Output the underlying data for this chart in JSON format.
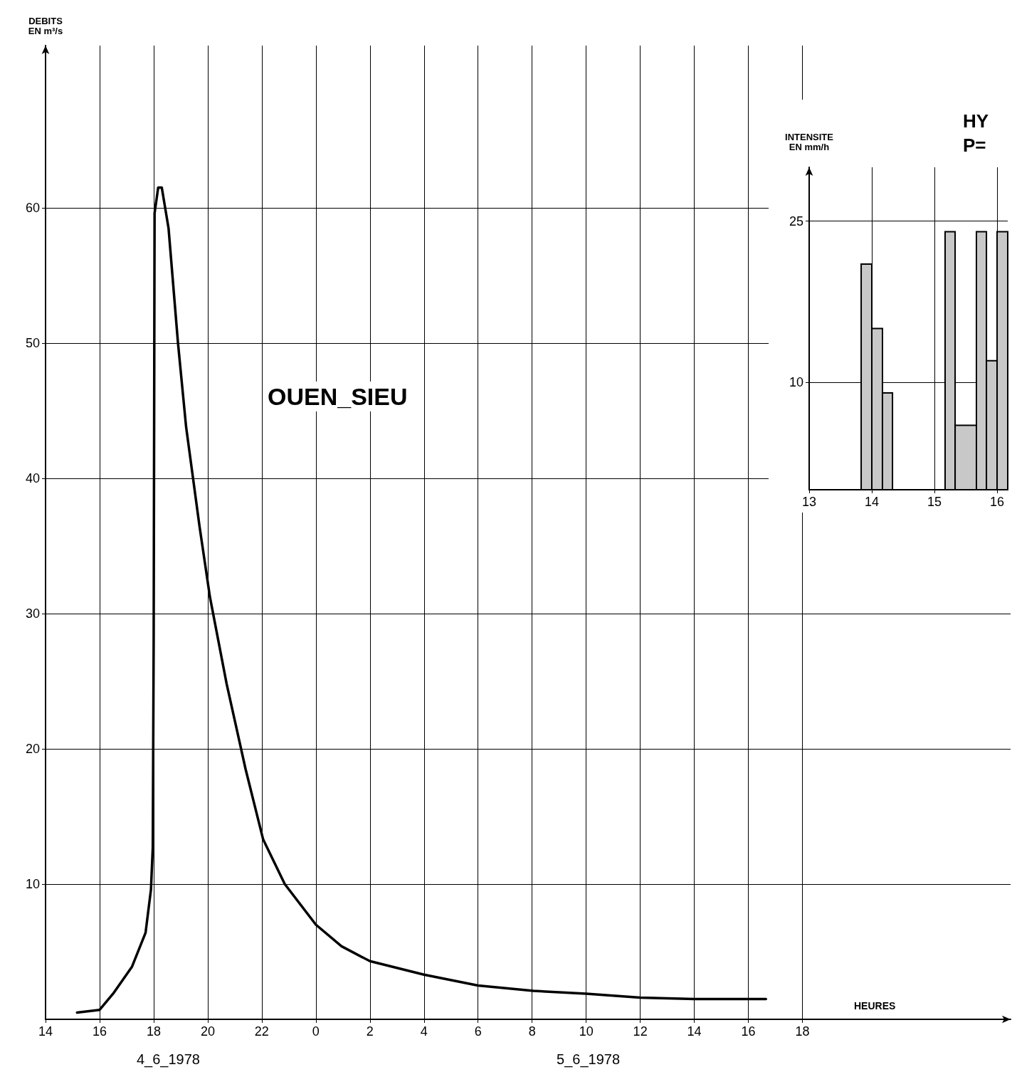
{
  "chart_data": [
    {
      "type": "line",
      "title": "OUEN_SIEU",
      "xlabel": "HEURES",
      "ylabel": "DEBITS\nEN m³/s",
      "annotations": [
        "4_6_1978",
        "5_6_1978"
      ],
      "series": [
        {
          "color": "#000000",
          "x": [
            "1978-06-04T15:10",
            "1978-06-04T16:00",
            "1978-06-04T16:30",
            "1978-06-04T17:12",
            "1978-06-04T17:42",
            "1978-06-04T17:54",
            "1978-06-04T17:58",
            "1978-06-04T18:00",
            "1978-06-04T18:02",
            "1978-06-04T18:10",
            "1978-06-04T18:18",
            "1978-06-04T18:33",
            "1978-06-04T18:54",
            "1978-06-04T19:12",
            "1978-06-04T19:42",
            "1978-06-04T20:05",
            "1978-06-04T20:42",
            "1978-06-04T21:24",
            "1978-06-04T22:03",
            "1978-06-04T22:51",
            "1978-06-05T00:00",
            "1978-06-05T00:57",
            "1978-06-05T02:00",
            "1978-06-05T04:00",
            "1978-06-05T06:00",
            "1978-06-05T08:03",
            "1978-06-05T10:00",
            "1978-06-05T12:00",
            "1978-06-05T14:00",
            "1978-06-05T16:00",
            "1978-06-05T16:39"
          ],
          "values": [
            0.5,
            0.7,
            1.9,
            3.9,
            6.4,
            9.6,
            12.7,
            28,
            59.6,
            61.5,
            61.5,
            58.5,
            50,
            43.8,
            36.4,
            31.2,
            24.8,
            18.5,
            13.3,
            10,
            7,
            5.4,
            4.3,
            3.3,
            2.5,
            2.1,
            1.9,
            1.6,
            1.5,
            1.5,
            1.5
          ]
        }
      ],
      "xlim": [
        "1978-06-04T14:00",
        "1978-06-06T01:42"
      ],
      "ylim": [
        0,
        72
      ],
      "xticks": [
        {
          "value": "1978-06-04T14:00",
          "label": "14"
        },
        {
          "value": "1978-06-04T16:00",
          "label": "16"
        },
        {
          "value": "1978-06-04T18:00",
          "label": "18"
        },
        {
          "value": "1978-06-04T20:00",
          "label": "20"
        },
        {
          "value": "1978-06-04T22:00",
          "label": "22"
        },
        {
          "value": "1978-06-05T00:00",
          "label": "0"
        },
        {
          "value": "1978-06-05T02:00",
          "label": "2"
        },
        {
          "value": "1978-06-05T04:00",
          "label": "4"
        },
        {
          "value": "1978-06-05T06:00",
          "label": "6"
        },
        {
          "value": "1978-06-05T08:00",
          "label": "8"
        },
        {
          "value": "1978-06-05T10:00",
          "label": "10"
        },
        {
          "value": "1978-06-05T12:00",
          "label": "12"
        },
        {
          "value": "1978-06-05T14:00",
          "label": "14"
        },
        {
          "value": "1978-06-05T16:00",
          "label": "16"
        },
        {
          "value": "1978-06-05T18:00",
          "label": "18"
        }
      ],
      "yticks": [
        10,
        20,
        30,
        40,
        50,
        60
      ],
      "grid": true,
      "marker": "none",
      "line_style": "solid"
    },
    {
      "type": "histogram",
      "title": "HY",
      "subtitle": "P=",
      "ylabel": "INTENSITE\nEN mm/h",
      "color": "#c8c8c8",
      "bins": [
        13.83,
        14.0,
        14.17,
        14.33,
        15.17,
        15.33,
        15.67,
        15.83,
        16.0,
        16.17
      ],
      "values": [
        21,
        15,
        9,
        0,
        24,
        6,
        24,
        12,
        24
      ],
      "xlim": [
        13,
        16.17
      ],
      "ylim": [
        0,
        30
      ],
      "xticks": [
        13,
        14,
        15,
        16
      ],
      "yticks": [
        10,
        25
      ],
      "grid": true
    }
  ]
}
